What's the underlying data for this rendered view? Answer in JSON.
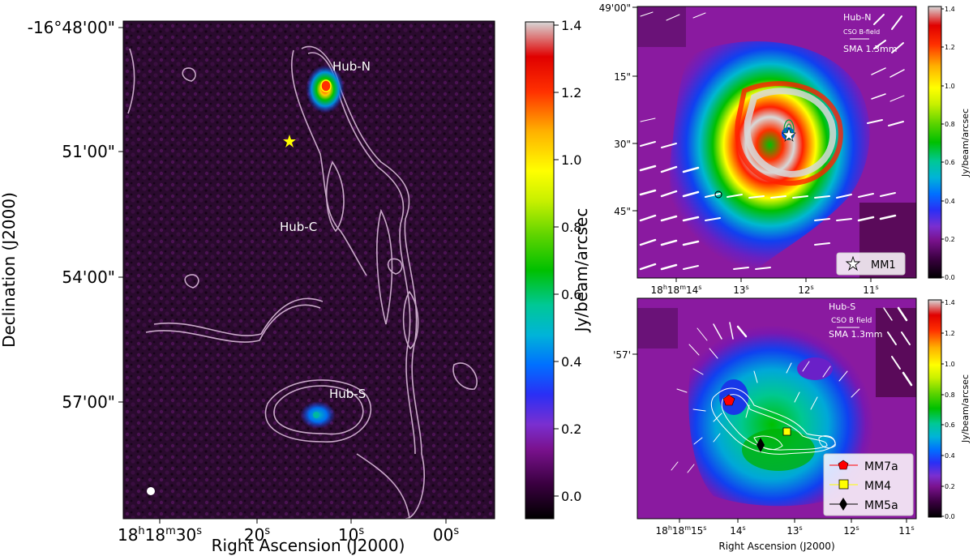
{
  "colorscale": [
    "#000000",
    "#2a0030",
    "#5a0a6e",
    "#8a1fa8",
    "#3a1ff0",
    "#0060ff",
    "#00b0d8",
    "#00c890",
    "#00c000",
    "#9be000",
    "#ffff00",
    "#ffa000",
    "#ff3000",
    "#e00000",
    "#d0d0d0"
  ],
  "chart_data": [
    {
      "type": "heatmap",
      "panel": "main",
      "xlabel": "Right Ascension (J2000)",
      "ylabel": "Declination (J2000)",
      "x_ticks": [
        {
          "main": "18",
          "h": "h",
          "mid": "18",
          "m": "m",
          "tail": "30",
          "s": "s",
          "value": "18h18m30s"
        },
        {
          "main": "20",
          "s": "s",
          "value": "20s"
        },
        {
          "main": "10",
          "s": "s",
          "value": "10s"
        },
        {
          "main": "00",
          "s": "s",
          "value": "00s"
        }
      ],
      "y_ticks": [
        "-16°48'00\"",
        "51'00\"",
        "54'00\"",
        "57'00\""
      ],
      "colorbar": {
        "label": "Jy/beam/arcsec",
        "ticks": [
          "0.0",
          "0.2",
          "0.4",
          "0.6",
          "0.8",
          "1.0",
          "1.2",
          "1.4"
        ],
        "range": [
          0.0,
          1.4
        ]
      },
      "annotations": [
        "Hub-N",
        "Hub-C",
        "Hub-S"
      ],
      "markers": [
        {
          "symbol": "star",
          "color": "#ffff00"
        }
      ]
    },
    {
      "type": "heatmap",
      "panel": "hub-n",
      "x_ticks": [
        {
          "main": "18",
          "h": "h",
          "mid": "18",
          "m": "m",
          "tail": "14",
          "s": "s"
        },
        {
          "main": "13",
          "s": "s"
        },
        {
          "main": "12",
          "s": "s"
        },
        {
          "main": "11",
          "s": "s"
        }
      ],
      "y_ticks": [
        "49'00\"",
        "15\"",
        "30\"",
        "45\""
      ],
      "colorbar": {
        "label": "Jy/beam/arcsec",
        "ticks": [
          "0.0",
          "0.2",
          "0.4",
          "0.6",
          "0.8",
          "1.0",
          "1.2",
          "1.4"
        ],
        "range": [
          0.0,
          1.4
        ]
      },
      "title_text": "Hub-N",
      "vector_label": "CSO B-field",
      "instrument": "SMA 1.3mm",
      "legend": [
        {
          "label": "MM1",
          "symbol": "star"
        }
      ]
    },
    {
      "type": "heatmap",
      "panel": "hub-s",
      "xlabel": "Right Ascension (J2000)",
      "x_ticks": [
        {
          "main": "18",
          "h": "h",
          "mid": "18",
          "m": "m",
          "tail": "15",
          "s": "s"
        },
        {
          "main": "14",
          "s": "s"
        },
        {
          "main": "13",
          "s": "s"
        },
        {
          "main": "12",
          "s": "s"
        },
        {
          "main": "11",
          "s": "s"
        }
      ],
      "y_ticks": [
        "'57'"
      ],
      "colorbar": {
        "label": "Jy/beam/arcsec",
        "ticks": [
          "0.0",
          "0.2",
          "0.4",
          "0.6",
          "0.8",
          "1.0",
          "1.2",
          "1.4"
        ],
        "range": [
          0.0,
          1.4
        ]
      },
      "title_text": "Hub-S",
      "vector_label": "CSO B field",
      "instrument": "SMA 1.3mm",
      "legend": [
        {
          "label": "MM7a",
          "symbol": "pentagon",
          "color": "#ff0000"
        },
        {
          "label": "MM4",
          "symbol": "square",
          "color": "#ffff00"
        },
        {
          "label": "MM5a",
          "symbol": "diamond",
          "color": "#000000"
        }
      ]
    }
  ]
}
